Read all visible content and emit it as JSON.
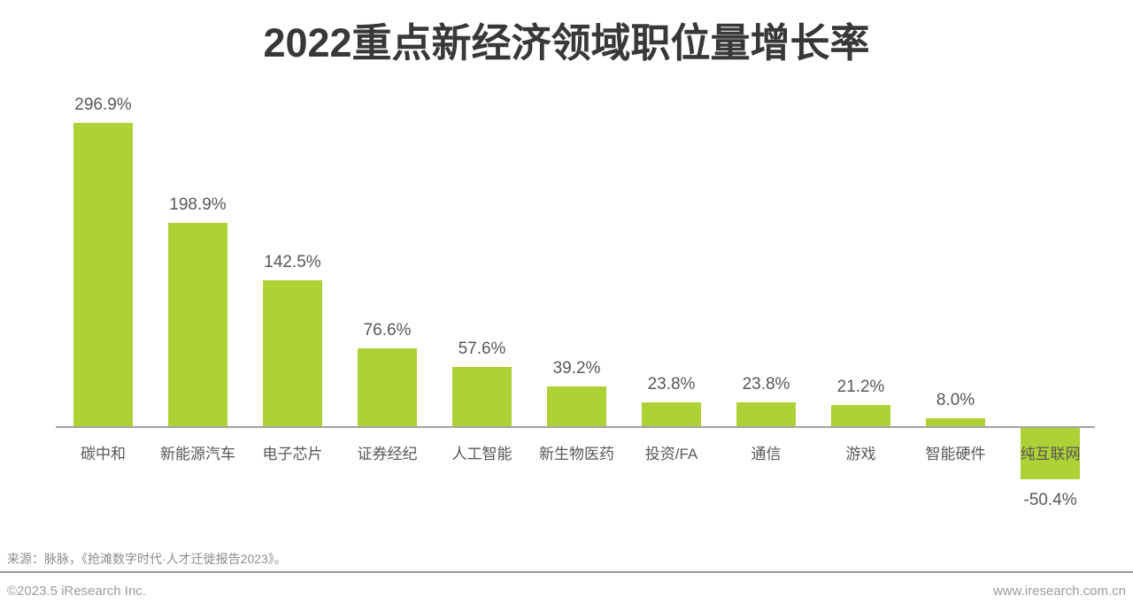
{
  "title": "2022重点新经济领域职位量增长率",
  "chart_data": {
    "type": "bar",
    "title": "2022重点新经济领域职位量增长率",
    "categories": [
      "碳中和",
      "新能源汽车",
      "电子芯片",
      "证券经纪",
      "人工智能",
      "新生物医药",
      "投资/FA",
      "通信",
      "游戏",
      "智能硬件",
      "纯互联网"
    ],
    "values": [
      296.9,
      198.9,
      142.5,
      76.6,
      57.6,
      39.2,
      23.8,
      23.8,
      21.2,
      8.0,
      -50.4
    ],
    "value_labels": [
      "296.9%",
      "198.9%",
      "142.5%",
      "76.6%",
      "57.6%",
      "39.2%",
      "23.8%",
      "23.8%",
      "21.2%",
      "8.0%",
      "-50.4%"
    ],
    "unit": "%",
    "bar_color": "#AED136",
    "label_color": "#595757",
    "axis_color": "#A3A3A3",
    "ylim": [
      -60,
      310
    ],
    "grid": false,
    "legend": "none"
  },
  "footer": {
    "source": "来源：脉脉，《抢滩数字时代·人才迁徙报告2023》。",
    "copyright": "©2023.5 iResearch Inc.",
    "website": "www.iresearch.com.cn"
  }
}
